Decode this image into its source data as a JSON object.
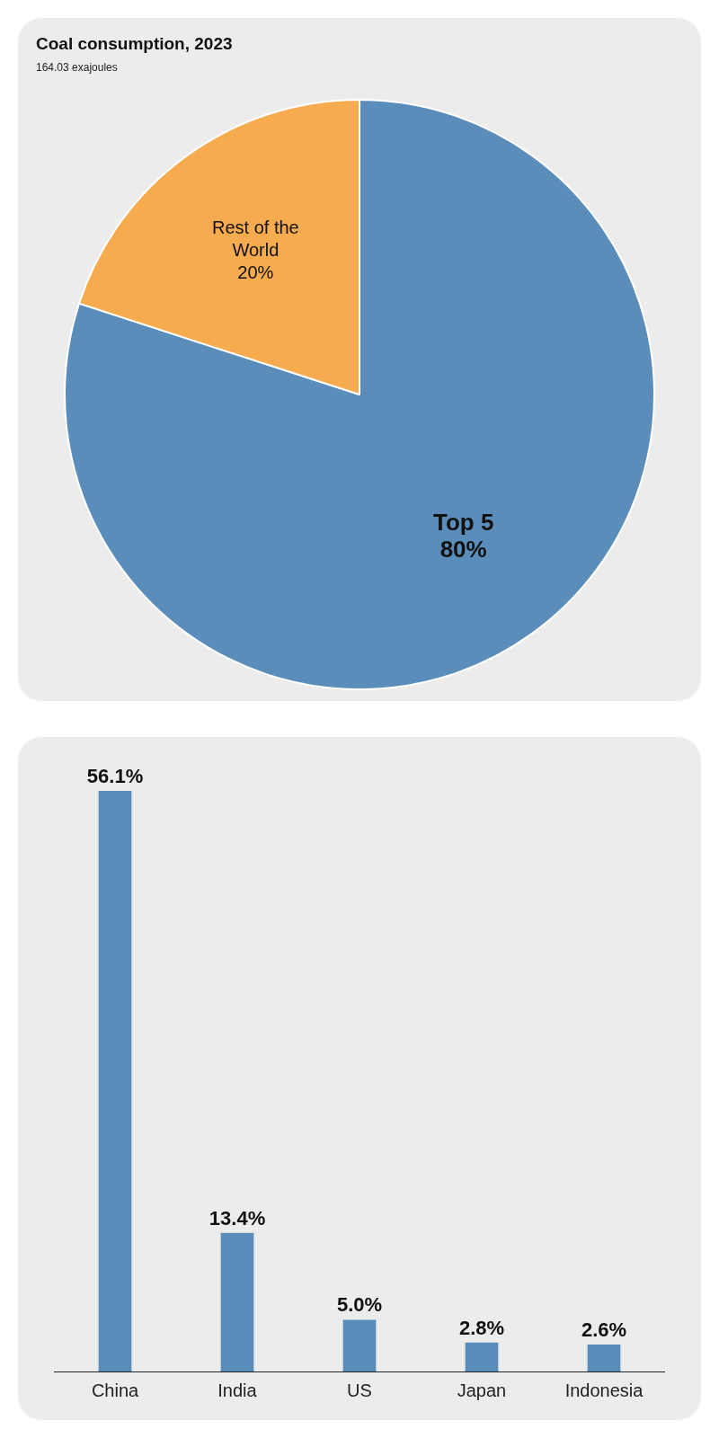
{
  "chart_data": [
    {
      "type": "pie",
      "title": "Coal consumption, 2023",
      "subtitle": "164.03 exajoules",
      "categories": [
        "Top 5",
        "Rest of the World"
      ],
      "values": [
        80,
        20
      ],
      "colors": [
        "#5b8dba",
        "#f7ab4f"
      ],
      "value_labels": [
        "80%",
        "20%"
      ],
      "legend": false
    },
    {
      "type": "bar",
      "categories": [
        "China",
        "India",
        "US",
        "Japan",
        "Indonesia"
      ],
      "values": [
        56.1,
        13.4,
        5.0,
        2.8,
        2.6
      ],
      "color": "#5b8dba",
      "value_labels": [
        "56.1%",
        "13.4%",
        "5.0%",
        "2.8%",
        "2.6%"
      ],
      "grid": false,
      "legend": false,
      "tick_labels": "x"
    }
  ]
}
